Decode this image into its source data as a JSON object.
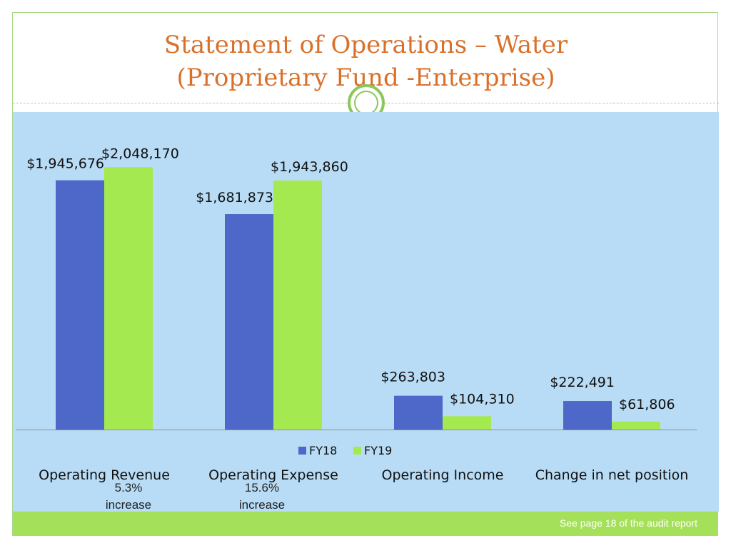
{
  "slide": {
    "title_line1": "Statement of Operations – Water",
    "title_line2": "(Proprietary Fund -Enterprise)",
    "footer_note": "See page 18 of the audit report"
  },
  "notes": [
    {
      "percent": "5.3%",
      "word": "increase"
    },
    {
      "percent": "15.6%",
      "word": "increase"
    }
  ],
  "colors": {
    "title": "#d9702a",
    "fy18": "#4d68c9",
    "fy19": "#a4e94f",
    "panel": "#b8dcf5",
    "footer": "#a5e05a"
  },
  "chart_data": {
    "type": "bar",
    "title": "Statement of Operations – Water (Proprietary Fund -Enterprise)",
    "xlabel": "",
    "ylabel": "",
    "ylim": [
      0,
      2200000
    ],
    "grid": false,
    "legend_position": "bottom-center",
    "categories": [
      "Operating Revenue",
      "Operating Expense",
      "Operating Income",
      "Change in net position"
    ],
    "series": [
      {
        "name": "FY18",
        "values": [
          1945676,
          1681873,
          263803,
          222491
        ],
        "labels": [
          "$1,945,676",
          "$1,681,873",
          "$263,803",
          "$222,491"
        ]
      },
      {
        "name": "FY19",
        "values": [
          2048170,
          1943860,
          104310,
          61806
        ],
        "labels": [
          "$2,048,170",
          "$1,943,860",
          "$104,310",
          "$61,806"
        ]
      }
    ]
  }
}
